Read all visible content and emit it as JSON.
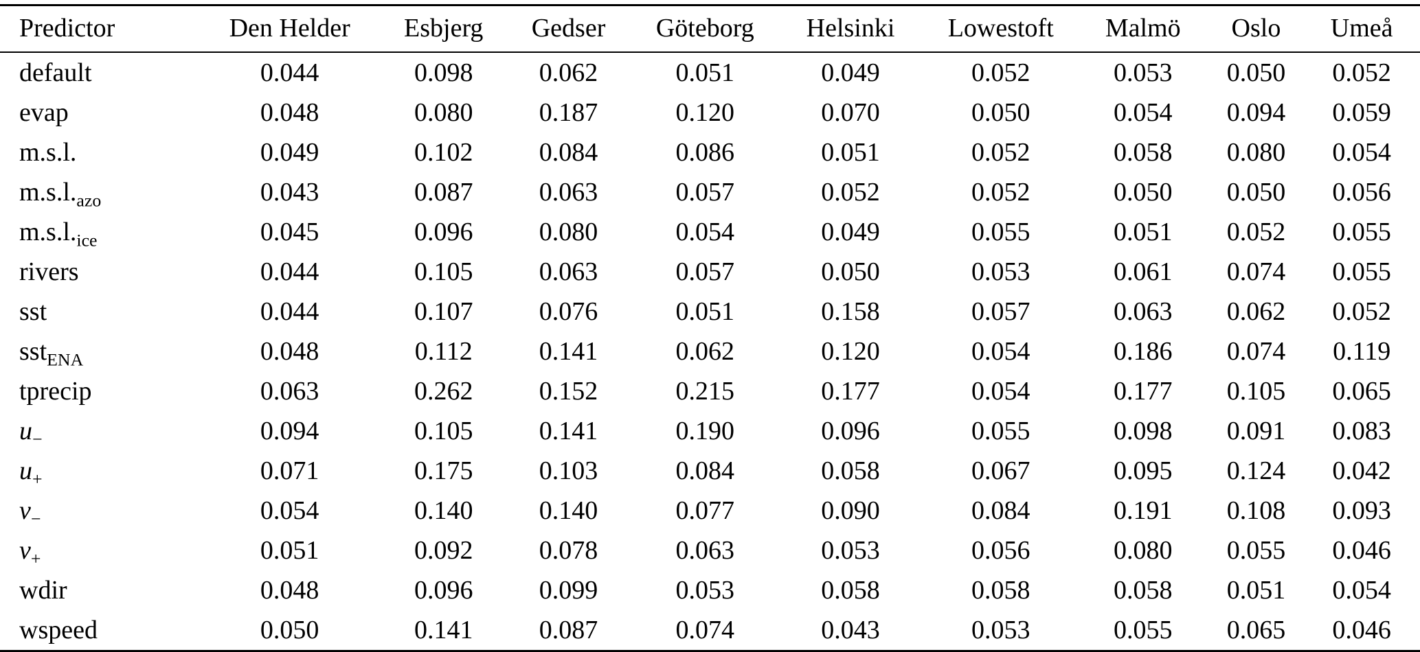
{
  "table": {
    "columns": [
      "Predictor",
      "Den Helder",
      "Esbjerg",
      "Gedser",
      "Göteborg",
      "Helsinki",
      "Lowestoft",
      "Malmö",
      "Oslo",
      "Umeå"
    ],
    "rows": [
      {
        "predictor": {
          "base": "default",
          "sub": "",
          "italic": false
        },
        "values": [
          "0.044",
          "0.098",
          "0.062",
          "0.051",
          "0.049",
          "0.052",
          "0.053",
          "0.050",
          "0.052"
        ]
      },
      {
        "predictor": {
          "base": "evap",
          "sub": "",
          "italic": false
        },
        "values": [
          "0.048",
          "0.080",
          "0.187",
          "0.120",
          "0.070",
          "0.050",
          "0.054",
          "0.094",
          "0.059"
        ]
      },
      {
        "predictor": {
          "base": "m.s.l.",
          "sub": "",
          "italic": false
        },
        "values": [
          "0.049",
          "0.102",
          "0.084",
          "0.086",
          "0.051",
          "0.052",
          "0.058",
          "0.080",
          "0.054"
        ]
      },
      {
        "predictor": {
          "base": "m.s.l.",
          "sub": "azo",
          "italic": false
        },
        "values": [
          "0.043",
          "0.087",
          "0.063",
          "0.057",
          "0.052",
          "0.052",
          "0.050",
          "0.050",
          "0.056"
        ]
      },
      {
        "predictor": {
          "base": "m.s.l.",
          "sub": "ice",
          "italic": false
        },
        "values": [
          "0.045",
          "0.096",
          "0.080",
          "0.054",
          "0.049",
          "0.055",
          "0.051",
          "0.052",
          "0.055"
        ]
      },
      {
        "predictor": {
          "base": "rivers",
          "sub": "",
          "italic": false
        },
        "values": [
          "0.044",
          "0.105",
          "0.063",
          "0.057",
          "0.050",
          "0.053",
          "0.061",
          "0.074",
          "0.055"
        ]
      },
      {
        "predictor": {
          "base": "sst",
          "sub": "",
          "italic": false
        },
        "values": [
          "0.044",
          "0.107",
          "0.076",
          "0.051",
          "0.158",
          "0.057",
          "0.063",
          "0.062",
          "0.052"
        ]
      },
      {
        "predictor": {
          "base": "sst",
          "sub": "ENA",
          "italic": false
        },
        "values": [
          "0.048",
          "0.112",
          "0.141",
          "0.062",
          "0.120",
          "0.054",
          "0.186",
          "0.074",
          "0.119"
        ]
      },
      {
        "predictor": {
          "base": "tprecip",
          "sub": "",
          "italic": false
        },
        "values": [
          "0.063",
          "0.262",
          "0.152",
          "0.215",
          "0.177",
          "0.054",
          "0.177",
          "0.105",
          "0.065"
        ]
      },
      {
        "predictor": {
          "base": "u",
          "sub": "−",
          "italic": true
        },
        "values": [
          "0.094",
          "0.105",
          "0.141",
          "0.190",
          "0.096",
          "0.055",
          "0.098",
          "0.091",
          "0.083"
        ]
      },
      {
        "predictor": {
          "base": "u",
          "sub": "+",
          "italic": true
        },
        "values": [
          "0.071",
          "0.175",
          "0.103",
          "0.084",
          "0.058",
          "0.067",
          "0.095",
          "0.124",
          "0.042"
        ]
      },
      {
        "predictor": {
          "base": "v",
          "sub": "−",
          "italic": true
        },
        "values": [
          "0.054",
          "0.140",
          "0.140",
          "0.077",
          "0.090",
          "0.084",
          "0.191",
          "0.108",
          "0.093"
        ]
      },
      {
        "predictor": {
          "base": "v",
          "sub": "+",
          "italic": true
        },
        "values": [
          "0.051",
          "0.092",
          "0.078",
          "0.063",
          "0.053",
          "0.056",
          "0.080",
          "0.055",
          "0.046"
        ]
      },
      {
        "predictor": {
          "base": "wdir",
          "sub": "",
          "italic": false
        },
        "values": [
          "0.048",
          "0.096",
          "0.099",
          "0.053",
          "0.058",
          "0.058",
          "0.058",
          "0.051",
          "0.054"
        ]
      },
      {
        "predictor": {
          "base": "wspeed",
          "sub": "",
          "italic": false
        },
        "values": [
          "0.050",
          "0.141",
          "0.087",
          "0.074",
          "0.043",
          "0.053",
          "0.055",
          "0.065",
          "0.046"
        ]
      }
    ]
  }
}
